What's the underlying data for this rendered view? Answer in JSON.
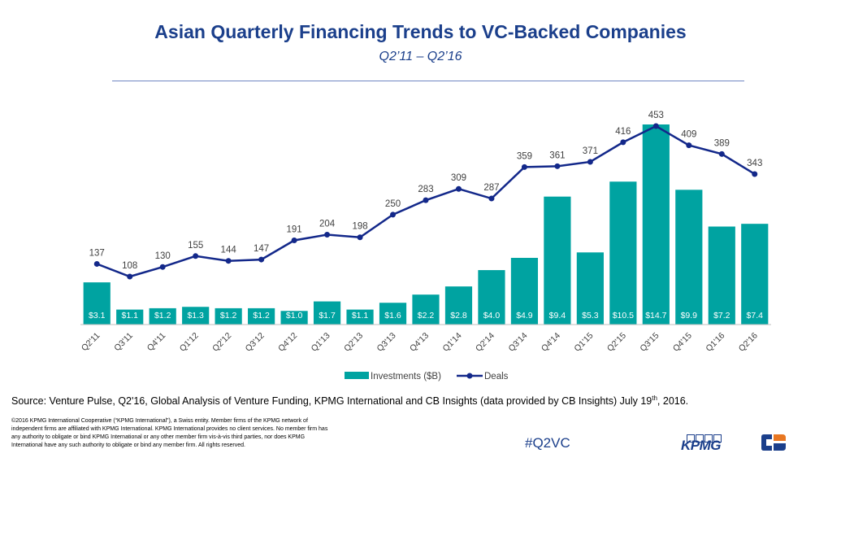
{
  "header": {
    "title": "Asian Quarterly Financing Trends to VC-Backed Companies",
    "subtitle": "Q2’11 – Q2’16"
  },
  "chart_data": {
    "type": "bar+line",
    "categories": [
      "Q2'11",
      "Q3'11",
      "Q4'11",
      "Q1'12",
      "Q2'12",
      "Q3'12",
      "Q4'12",
      "Q1'13",
      "Q2'13",
      "Q3'13",
      "Q4'13",
      "Q1'14",
      "Q2'14",
      "Q3'14",
      "Q4'14",
      "Q1'15",
      "Q2'15",
      "Q3'15",
      "Q4'15",
      "Q1'16",
      "Q2'16"
    ],
    "series": [
      {
        "name": "Investments ($B)",
        "type": "bar",
        "color": "#00a3a1",
        "values": [
          3.1,
          1.1,
          1.2,
          1.3,
          1.2,
          1.2,
          1.0,
          1.7,
          1.1,
          1.6,
          2.2,
          2.8,
          4.0,
          4.9,
          9.4,
          5.3,
          10.5,
          14.7,
          9.9,
          7.2,
          7.4
        ],
        "labels": [
          "$3.1",
          "$1.1",
          "$1.2",
          "$1.3",
          "$1.2",
          "$1.2",
          "$1.0",
          "$1.7",
          "$1.1",
          "$1.6",
          "$2.2",
          "$2.8",
          "$4.0",
          "$4.9",
          "$9.4",
          "$5.3",
          "$10.5",
          "$14.7",
          "$9.9",
          "$7.2",
          "$7.4"
        ]
      },
      {
        "name": "Deals",
        "type": "line",
        "color": "#13288a",
        "values": [
          137,
          108,
          130,
          155,
          144,
          147,
          191,
          204,
          198,
          250,
          283,
          309,
          287,
          359,
          361,
          371,
          416,
          453,
          409,
          389,
          343
        ]
      }
    ],
    "legend_position": "bottom",
    "grid": false
  },
  "footer": {
    "source_text": "Source: Venture Pulse, Q2'16, Global Analysis of Venture Funding, KPMG International and CB Insights (data provided by CB Insights) July 19",
    "source_sup": "th",
    "source_tail": ", 2016.",
    "copyright": "©2016 KPMG International Cooperative (“KPMG International”), a Swiss entity. Member firms of the KPMG network of independent firms are affiliated with KPMG International. KPMG International provides no client services. No member firm has any authority to obligate or bind KPMG International or any other member firm vis-à-vis third parties, nor does KPMG International have any such authority to obligate or bind any member firm. All rights reserved.",
    "hashtag": "#Q2VC",
    "kpmg_logo": "KPMG"
  }
}
